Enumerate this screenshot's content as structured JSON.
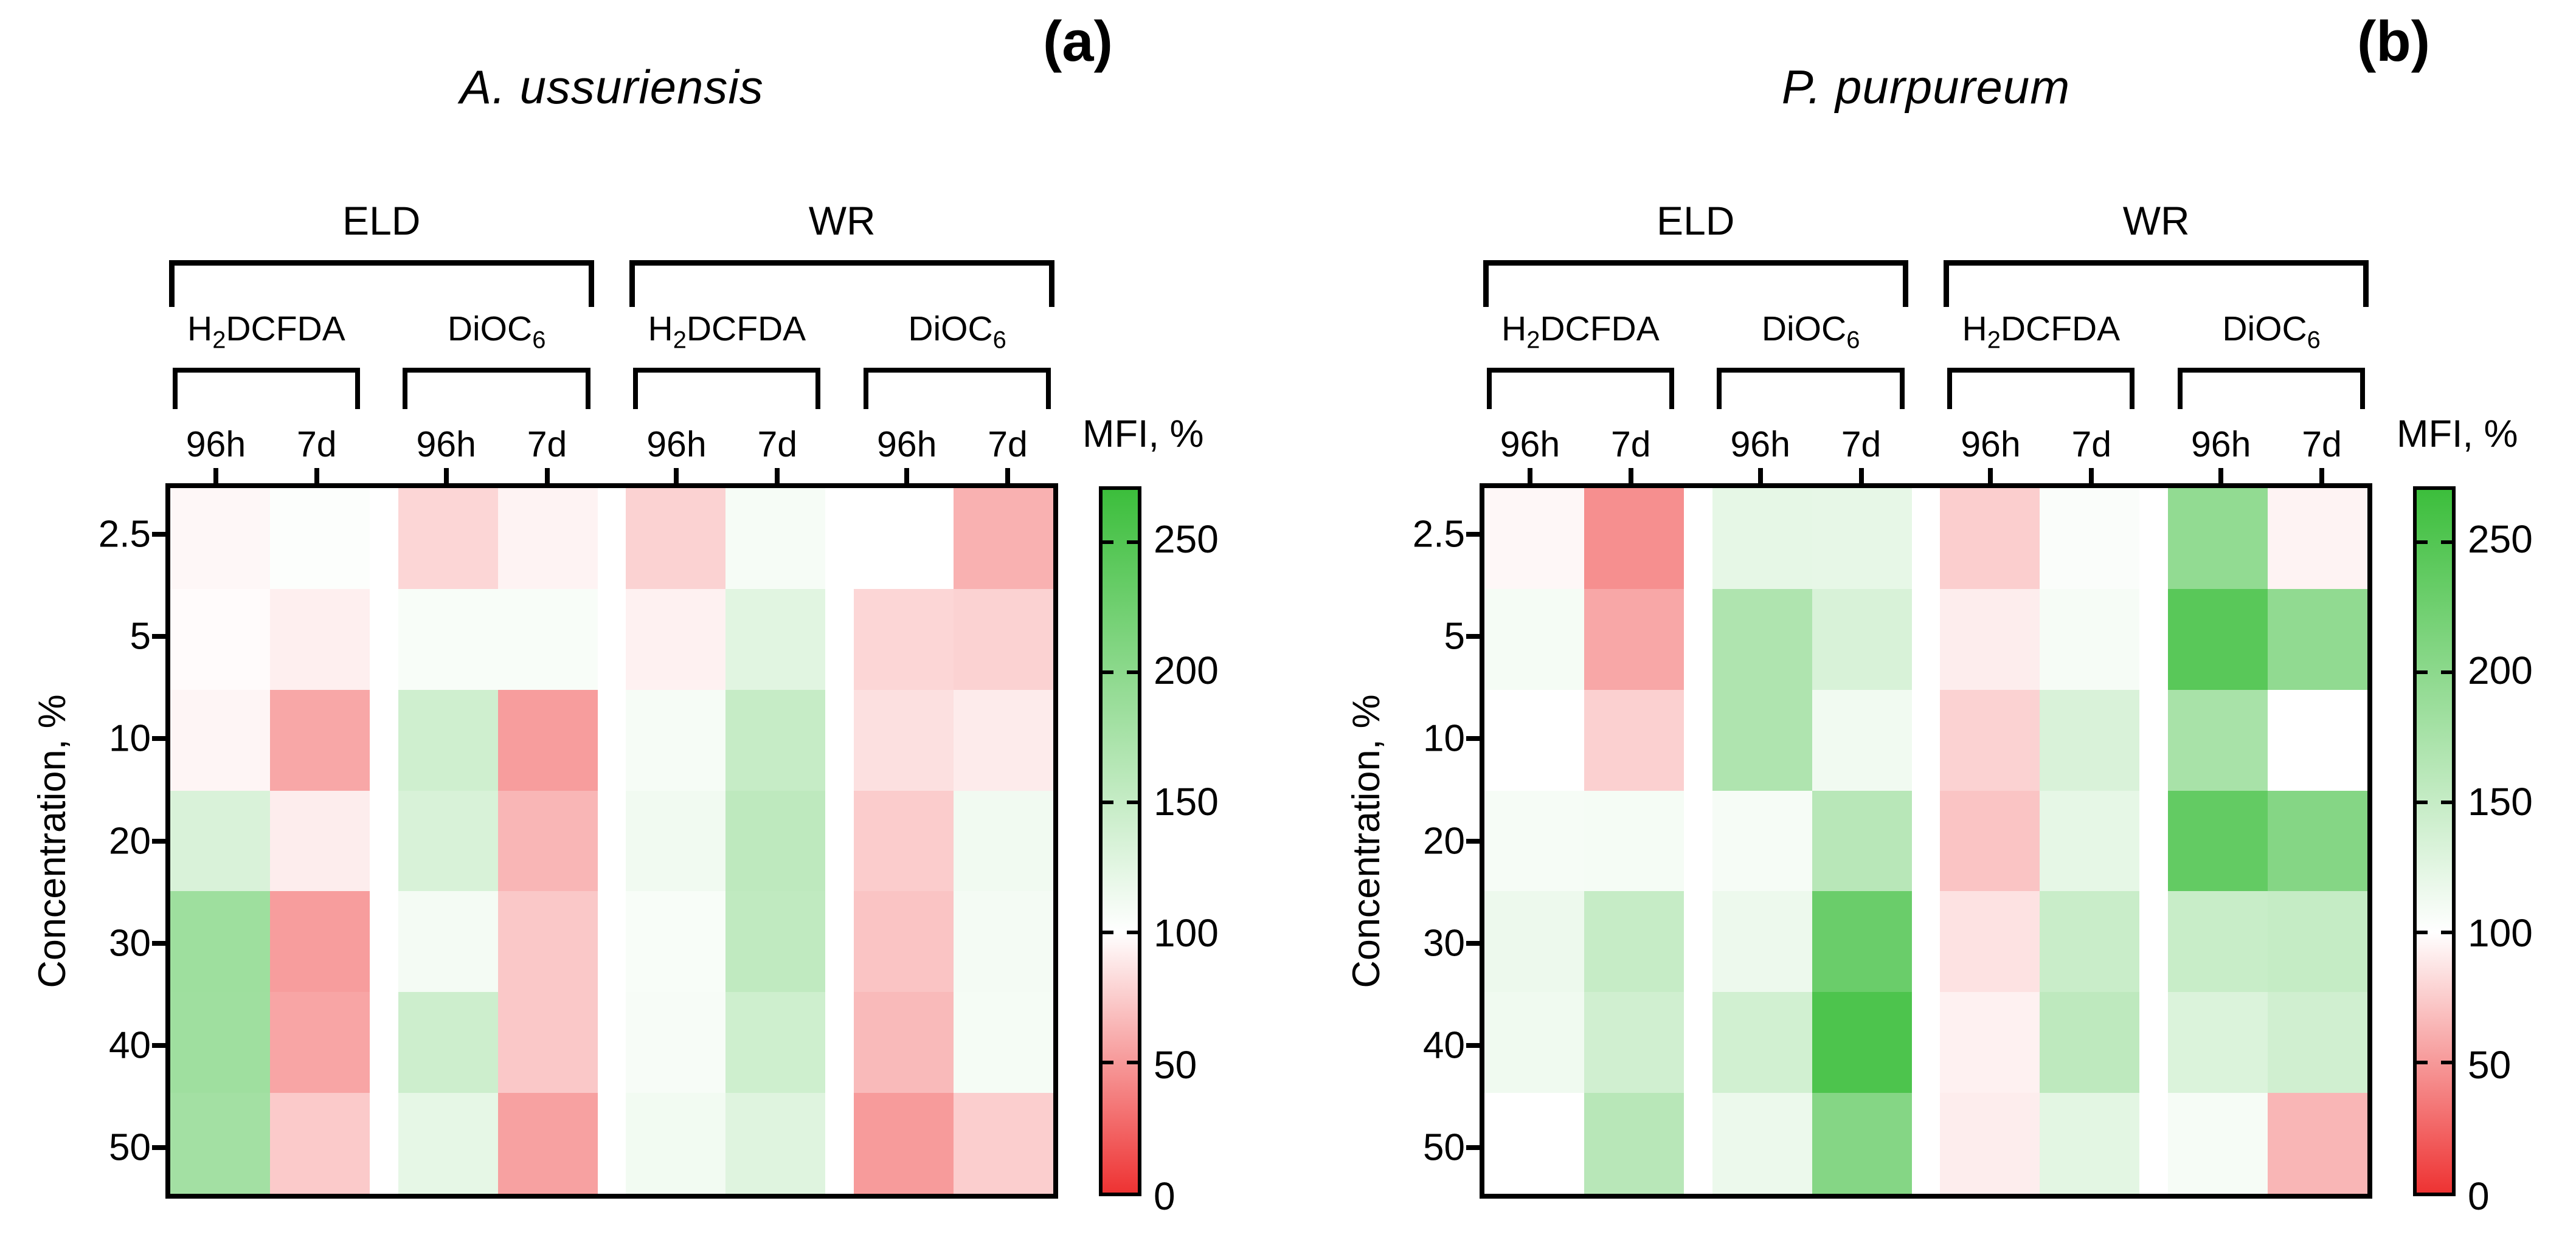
{
  "labels": {
    "group_left": "ELD",
    "group_right": "WR",
    "marker1": {
      "base": "H",
      "sub": "2",
      "rest": "DCFDA"
    },
    "marker2": {
      "base": "DiOC",
      "sub": "6",
      "rest": ""
    },
    "time1": "96h",
    "time2": "7d",
    "y_axis": "Concentration, %",
    "colorbar_title": "MFI, %"
  },
  "panels": [
    {
      "title": "A. ussuriensis",
      "letter": "(a)"
    },
    {
      "title": "P. purpureum",
      "letter": "(b)"
    }
  ],
  "chart_data": [
    {
      "type": "heatmap",
      "title": "A. ussuriensis",
      "panel_label": "(a)",
      "col_groups": [
        {
          "name": "ELD",
          "markers": [
            {
              "name": "H2DCFDA",
              "times": [
                "96h",
                "7d"
              ]
            },
            {
              "name": "DiOC6",
              "times": [
                "96h",
                "7d"
              ]
            }
          ]
        },
        {
          "name": "WR",
          "markers": [
            {
              "name": "H2DCFDA",
              "times": [
                "96h",
                "7d"
              ]
            },
            {
              "name": "DiOC6",
              "times": [
                "96h",
                "7d"
              ]
            }
          ]
        }
      ],
      "columns": [
        "ELD H2DCFDA 96h",
        "ELD H2DCFDA 7d",
        "ELD DiOC6 96h",
        "ELD DiOC6 7d",
        "WR H2DCFDA 96h",
        "WR H2DCFDA 7d",
        "WR DiOC6 96h",
        "WR DiOC6 7d"
      ],
      "rows": [
        "2.5",
        "5",
        "10",
        "20",
        "30",
        "40",
        "50"
      ],
      "row_axis_label": "Concentration, %",
      "values_mfi_percent": [
        [
          96,
          103,
          80,
          94,
          78,
          108,
          100,
          62
        ],
        [
          98,
          92,
          106,
          106,
          93,
          126,
          80,
          78
        ],
        [
          95,
          57,
          142,
          52,
          108,
          150,
          85,
          90
        ],
        [
          133,
          91,
          134,
          64,
          112,
          157,
          75,
          112
        ],
        [
          185,
          52,
          110,
          73,
          106,
          155,
          71,
          110
        ],
        [
          184,
          56,
          144,
          73,
          107,
          143,
          66,
          109
        ],
        [
          180,
          74,
          122,
          54,
          111,
          128,
          51,
          76
        ]
      ],
      "colorbar": {
        "label": "MFI, %",
        "min": 0,
        "max": 270,
        "mid_value": 100,
        "ticks": [
          0,
          50,
          100,
          150,
          200,
          250
        ],
        "low_color": "#ee3333",
        "mid_color": "#ffffff",
        "high_color": "#3cbe3c"
      }
    },
    {
      "type": "heatmap",
      "title": "P. purpureum",
      "panel_label": "(b)",
      "col_groups": [
        {
          "name": "ELD",
          "markers": [
            {
              "name": "H2DCFDA",
              "times": [
                "96h",
                "7d"
              ]
            },
            {
              "name": "DiOC6",
              "times": [
                "96h",
                "7d"
              ]
            }
          ]
        },
        {
          "name": "WR",
          "markers": [
            {
              "name": "H2DCFDA",
              "times": [
                "96h",
                "7d"
              ]
            },
            {
              "name": "DiOC6",
              "times": [
                "96h",
                "7d"
              ]
            }
          ]
        }
      ],
      "columns": [
        "ELD H2DCFDA 96h",
        "ELD H2DCFDA 7d",
        "ELD DiOC6 96h",
        "ELD DiOC6 7d",
        "WR H2DCFDA 96h",
        "WR H2DCFDA 7d",
        "WR DiOC6 96h",
        "WR DiOC6 7d"
      ],
      "rows": [
        "2.5",
        "5",
        "10",
        "20",
        "30",
        "40",
        "50"
      ],
      "row_axis_label": "Concentration, %",
      "values_mfi_percent": [
        [
          96,
          45,
          122,
          121,
          76,
          104,
          195,
          94
        ],
        [
          109,
          57,
          170,
          134,
          91,
          108,
          245,
          196
        ],
        [
          100,
          77,
          170,
          112,
          78,
          133,
          176,
          100
        ],
        [
          108,
          109,
          108,
          162,
          71,
          122,
          236,
          206
        ],
        [
          116,
          150,
          116,
          230,
          86,
          147,
          148,
          151
        ],
        [
          113,
          141,
          140,
          255,
          93,
          157,
          131,
          141
        ],
        [
          100,
          162,
          117,
          206,
          91,
          124,
          108,
          64
        ]
      ],
      "colorbar": {
        "label": "MFI, %",
        "min": 0,
        "max": 270,
        "mid_value": 100,
        "ticks": [
          0,
          50,
          100,
          150,
          200,
          250
        ],
        "low_color": "#ee3333",
        "mid_color": "#ffffff",
        "high_color": "#3cbe3c"
      }
    }
  ]
}
